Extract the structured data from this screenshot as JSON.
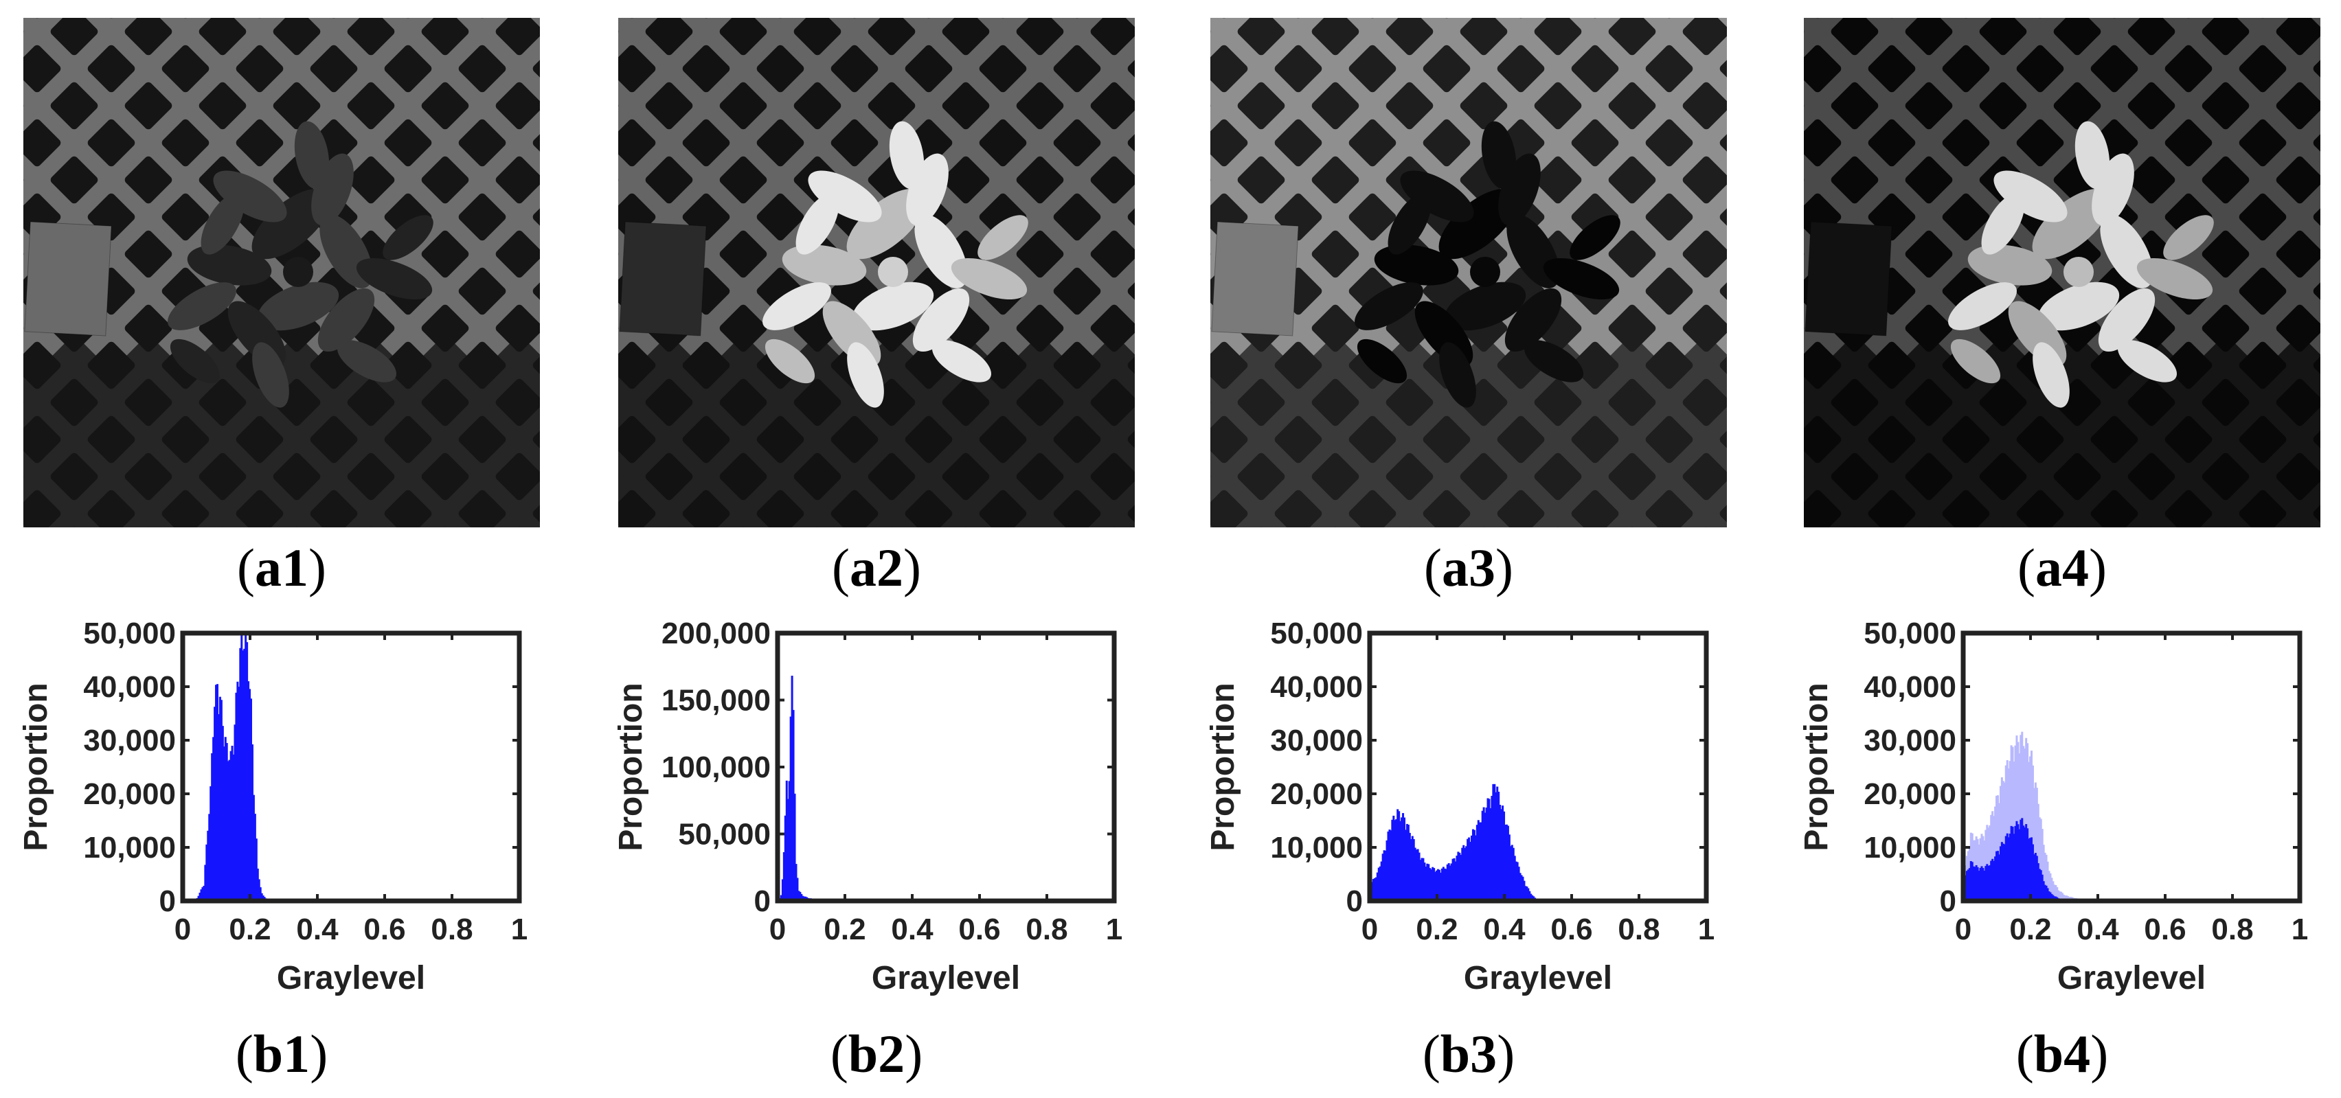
{
  "panels": [
    {
      "image_label": "a1",
      "chart_label": "b1"
    },
    {
      "image_label": "a2",
      "chart_label": "b2"
    },
    {
      "image_label": "a3",
      "chart_label": "b3"
    },
    {
      "image_label": "a4",
      "chart_label": "b4"
    }
  ],
  "chart_data": [
    {
      "type": "bar",
      "xlabel": "Graylevel",
      "ylabel": "Proportion",
      "xlim": [
        0,
        1
      ],
      "ylim": [
        0,
        50000
      ],
      "xticks": [
        "0",
        "0.2",
        "0.4",
        "0.6",
        "0.8",
        "1"
      ],
      "yticks": [
        "0",
        "10,000",
        "20,000",
        "30,000",
        "40,000",
        "50,000"
      ],
      "series": [
        {
          "color": "#1414ff",
          "values": [
            [
              0.02,
              0
            ],
            [
              0.04,
              500
            ],
            [
              0.06,
              3000
            ],
            [
              0.08,
              20000
            ],
            [
              0.09,
              35000
            ],
            [
              0.1,
              39000
            ],
            [
              0.11,
              36000
            ],
            [
              0.12,
              30000
            ],
            [
              0.13,
              27000
            ],
            [
              0.14,
              26000
            ],
            [
              0.15,
              30000
            ],
            [
              0.16,
              40000
            ],
            [
              0.17,
              46000
            ],
            [
              0.18,
              48000
            ],
            [
              0.19,
              45000
            ],
            [
              0.2,
              35000
            ],
            [
              0.21,
              18000
            ],
            [
              0.22,
              6000
            ],
            [
              0.23,
              1500
            ],
            [
              0.25,
              0
            ]
          ]
        }
      ]
    },
    {
      "type": "bar",
      "xlabel": "Graylevel",
      "ylabel": "Proportion",
      "xlim": [
        0,
        1
      ],
      "ylim": [
        0,
        200000
      ],
      "xticks": [
        "0",
        "0.2",
        "0.4",
        "0.6",
        "0.8",
        "1"
      ],
      "yticks": [
        "0",
        "50,000",
        "100,000",
        "150,000",
        "200,000"
      ],
      "series": [
        {
          "color": "#1414ff",
          "values": [
            [
              0.0,
              0
            ],
            [
              0.01,
              5000
            ],
            [
              0.02,
              60000
            ],
            [
              0.025,
              90000
            ],
            [
              0.03,
              70000
            ],
            [
              0.035,
              120000
            ],
            [
              0.04,
              160000
            ],
            [
              0.045,
              150000
            ],
            [
              0.05,
              30000
            ],
            [
              0.06,
              8000
            ],
            [
              0.07,
              4000
            ],
            [
              0.09,
              2000
            ],
            [
              0.12,
              1000
            ],
            [
              0.15,
              0
            ]
          ]
        }
      ]
    },
    {
      "type": "bar",
      "xlabel": "Graylevel",
      "ylabel": "Proportion",
      "xlim": [
        0,
        1
      ],
      "ylim": [
        0,
        50000
      ],
      "xticks": [
        "0",
        "0.2",
        "0.4",
        "0.6",
        "0.8",
        "1"
      ],
      "yticks": [
        "0",
        "10,000",
        "20,000",
        "30,000",
        "40,000",
        "50,000"
      ],
      "series": [
        {
          "color": "#1414ff",
          "values": [
            [
              0.0,
              3000
            ],
            [
              0.02,
              5000
            ],
            [
              0.04,
              9000
            ],
            [
              0.06,
              14000
            ],
            [
              0.08,
              16000
            ],
            [
              0.1,
              15000
            ],
            [
              0.12,
              12000
            ],
            [
              0.14,
              9000
            ],
            [
              0.16,
              7000
            ],
            [
              0.18,
              6000
            ],
            [
              0.2,
              5500
            ],
            [
              0.22,
              6000
            ],
            [
              0.24,
              7000
            ],
            [
              0.26,
              8500
            ],
            [
              0.28,
              10000
            ],
            [
              0.3,
              12000
            ],
            [
              0.32,
              14000
            ],
            [
              0.34,
              17000
            ],
            [
              0.36,
              19000
            ],
            [
              0.37,
              22000
            ],
            [
              0.38,
              19000
            ],
            [
              0.39,
              17000
            ],
            [
              0.4,
              15000
            ],
            [
              0.42,
              10000
            ],
            [
              0.44,
              6000
            ],
            [
              0.46,
              3000
            ],
            [
              0.48,
              1000
            ],
            [
              0.5,
              0
            ]
          ]
        }
      ]
    },
    {
      "type": "bar",
      "xlabel": "Graylevel",
      "ylabel": "Proportion",
      "xlim": [
        0,
        1
      ],
      "ylim": [
        0,
        50000
      ],
      "xticks": [
        "0",
        "0.2",
        "0.4",
        "0.6",
        "0.8",
        "1"
      ],
      "yticks": [
        "0",
        "10,000",
        "20,000",
        "30,000",
        "40,000",
        "50,000"
      ],
      "series": [
        {
          "color": "#b8b8ff",
          "values": [
            [
              0.0,
              5000
            ],
            [
              0.02,
              12000
            ],
            [
              0.04,
              11000
            ],
            [
              0.06,
              12000
            ],
            [
              0.08,
              15000
            ],
            [
              0.1,
              19000
            ],
            [
              0.12,
              23000
            ],
            [
              0.14,
              27000
            ],
            [
              0.16,
              29000
            ],
            [
              0.17,
              29500
            ],
            [
              0.18,
              29000
            ],
            [
              0.2,
              26000
            ],
            [
              0.22,
              18000
            ],
            [
              0.24,
              9000
            ],
            [
              0.26,
              4000
            ],
            [
              0.28,
              2000
            ],
            [
              0.3,
              1000
            ],
            [
              0.33,
              500
            ],
            [
              0.38,
              0
            ]
          ]
        },
        {
          "color": "#1414ff",
          "values": [
            [
              0.0,
              4000
            ],
            [
              0.02,
              7000
            ],
            [
              0.04,
              6000
            ],
            [
              0.06,
              6000
            ],
            [
              0.08,
              7000
            ],
            [
              0.1,
              9000
            ],
            [
              0.12,
              11000
            ],
            [
              0.14,
              13000
            ],
            [
              0.16,
              14000
            ],
            [
              0.17,
              14500
            ],
            [
              0.18,
              14000
            ],
            [
              0.2,
              11000
            ],
            [
              0.22,
              7000
            ],
            [
              0.24,
              3000
            ],
            [
              0.26,
              1200
            ],
            [
              0.28,
              500
            ],
            [
              0.32,
              0
            ]
          ]
        }
      ]
    }
  ]
}
